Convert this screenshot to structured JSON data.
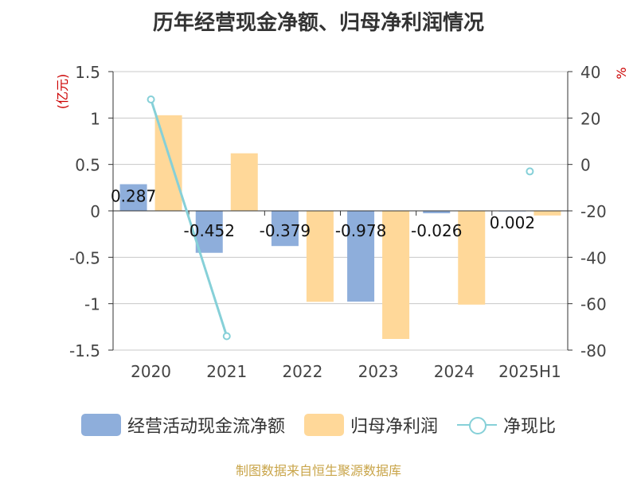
{
  "title": "历年经营现金净额、归母净利润情况",
  "source": "制图数据来自恒生聚源数据库",
  "colors": {
    "cash_flow": "#8EAEDB",
    "net_profit": "#FFD899",
    "ratio_line": "#86D0D8",
    "axis_unit": "#CC0000",
    "grid": "#C8C8C8",
    "source_text": "#C9A54A"
  },
  "chart_data": {
    "type": "bar",
    "title": "历年经营现金净额、归母净利润情况",
    "categories": [
      "2020",
      "2021",
      "2022",
      "2023",
      "2024",
      "2025H1"
    ],
    "y_left": {
      "unit": "(亿元)",
      "range": [
        -1.5,
        1.5
      ],
      "ticks": [
        1.5,
        1,
        0.5,
        0,
        -0.5,
        -1,
        -1.5
      ],
      "tick_labels": [
        "1.5",
        "1",
        "0.5",
        "0",
        "-0.5",
        "-1",
        "-1.5"
      ]
    },
    "y_right": {
      "unit": "%",
      "range": [
        -80,
        40
      ],
      "ticks": [
        40,
        20,
        0,
        -20,
        -40,
        -60,
        -80
      ],
      "tick_labels": [
        "40",
        "20",
        "0",
        "-20",
        "-40",
        "-60",
        "-80"
      ]
    },
    "grid": true,
    "legend_position": "bottom",
    "series": [
      {
        "name": "经营活动现金流净额",
        "type": "bar",
        "axis": "left",
        "values": [
          0.287,
          -0.452,
          -0.379,
          -0.978,
          -0.026,
          0.002
        ],
        "labels": [
          "0.287",
          "-0.452",
          "-0.379",
          "-0.978",
          "-0.026",
          "0.002"
        ]
      },
      {
        "name": "归母净利润",
        "type": "bar",
        "axis": "left",
        "values": [
          1.03,
          0.62,
          -0.98,
          -1.38,
          -1.01,
          -0.05
        ]
      },
      {
        "name": "净现比",
        "type": "line",
        "axis": "right",
        "values": [
          28,
          -74,
          null,
          null,
          null,
          -3
        ]
      }
    ]
  }
}
